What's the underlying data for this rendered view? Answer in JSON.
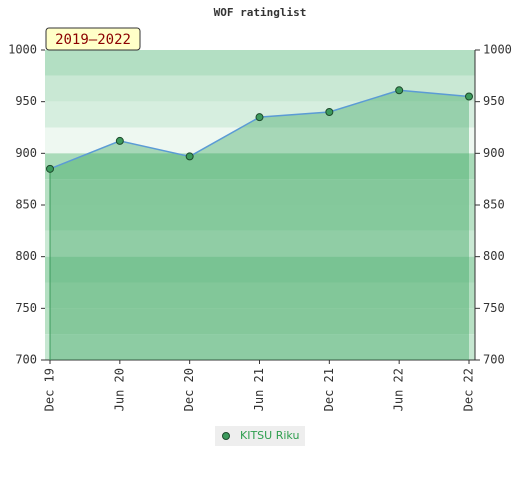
{
  "chart_data": {
    "type": "line",
    "title": "WOF ratinglist",
    "annotation": "2019–2022",
    "categories": [
      "Dec 19",
      "Jun 20",
      "Dec 20",
      "Jun 21",
      "Dec 21",
      "Jun 22",
      "Dec 22"
    ],
    "series": [
      {
        "name": "KITSU Riku",
        "color": "#3c9a5c",
        "line_color": "#5b9bd5",
        "values": [
          885,
          912,
          897,
          935,
          940,
          961,
          955
        ]
      }
    ],
    "ylim": [
      700,
      1000
    ],
    "yticks": [
      700,
      750,
      800,
      850,
      900,
      950,
      1000
    ],
    "y2lim": [
      700,
      1000
    ],
    "y2ticks": [
      700,
      750,
      800,
      850,
      900,
      950,
      1000
    ],
    "legend": "bottom"
  }
}
